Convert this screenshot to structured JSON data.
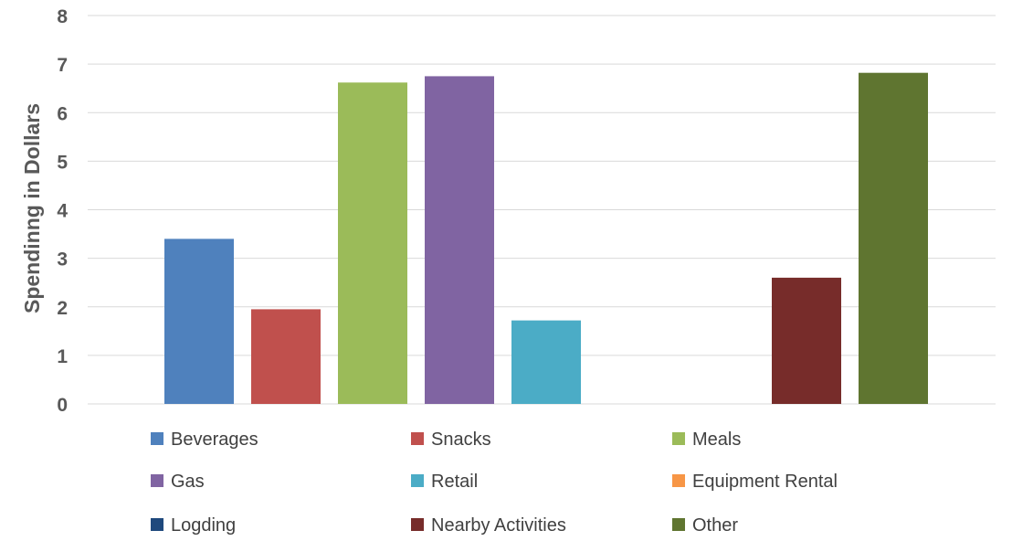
{
  "chart_data": {
    "type": "bar",
    "ylabel": "Spendinng in Dollars",
    "ylim": [
      0,
      8
    ],
    "yticks": [
      0,
      1,
      2,
      3,
      4,
      5,
      6,
      7,
      8
    ],
    "grid": true,
    "legend_position": "bottom",
    "series": [
      {
        "name": "Beverages",
        "value": 3.4,
        "color": "#4f81bd"
      },
      {
        "name": "Snacks",
        "value": 1.95,
        "color": "#c0504d"
      },
      {
        "name": "Meals",
        "value": 6.62,
        "color": "#9bbb59"
      },
      {
        "name": "Gas",
        "value": 6.75,
        "color": "#8064a2"
      },
      {
        "name": "Retail",
        "value": 1.72,
        "color": "#4bacc6"
      },
      {
        "name": "Equipment Rental",
        "value": 0,
        "color": "#f79646"
      },
      {
        "name": "Logding",
        "value": 0,
        "color": "#1f497d"
      },
      {
        "name": "Nearby Activities",
        "value": 2.6,
        "color": "#772c2a"
      },
      {
        "name": "Other",
        "value": 6.82,
        "color": "#5f7530"
      }
    ]
  }
}
